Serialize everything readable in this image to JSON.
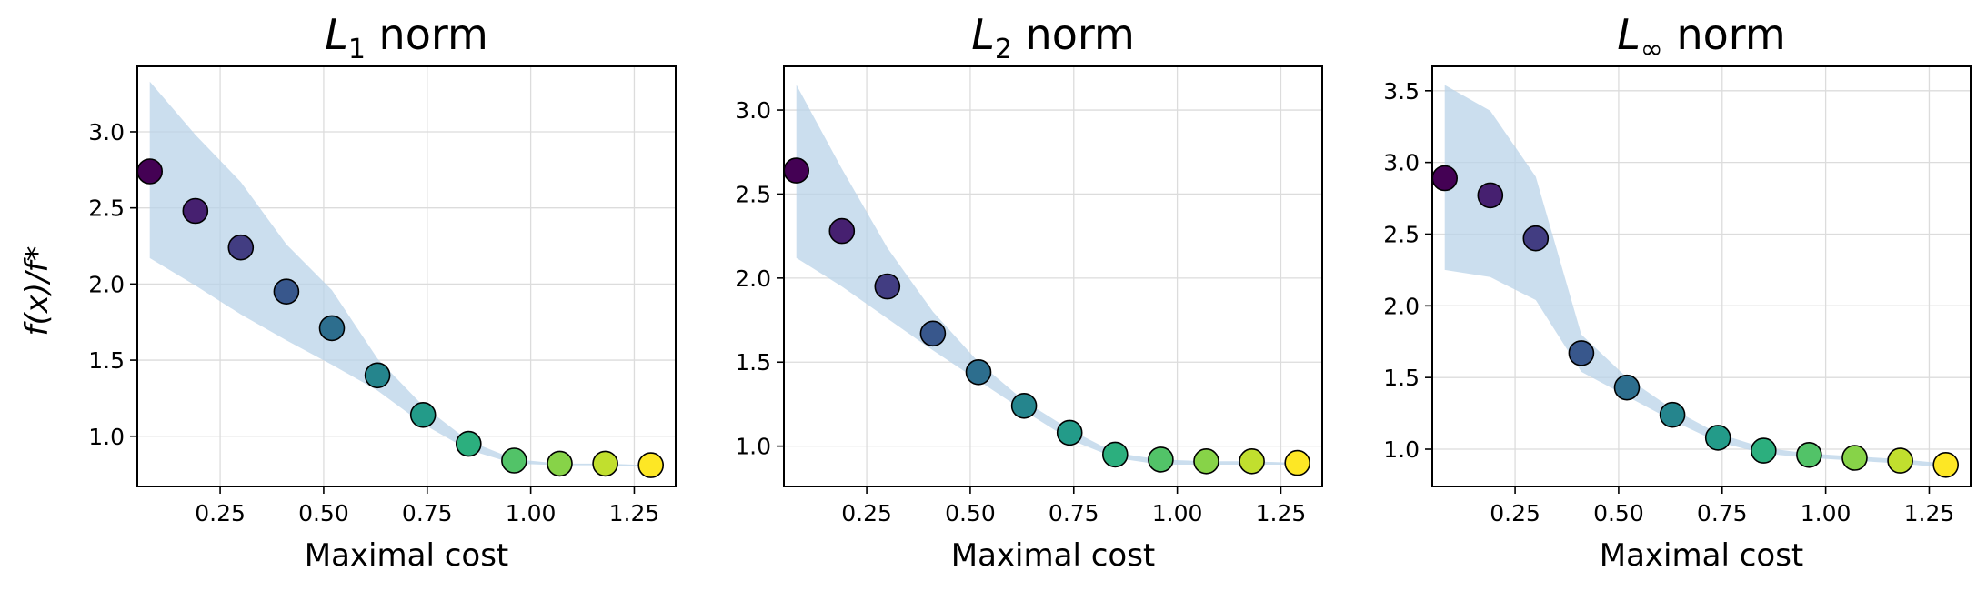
{
  "figure": {
    "ylabel": "f(x)/f*"
  },
  "chart_data": [
    {
      "type": "scatter",
      "title": "L1 norm",
      "title_math": {
        "base": "L",
        "sub": "1",
        "rest": " norm"
      },
      "xlabel": "Maximal cost",
      "ylabel": "f(x)/f*",
      "xlim": [
        0.05,
        1.35
      ],
      "ylim": [
        0.67,
        3.43
      ],
      "xticks": [
        0.25,
        0.5,
        0.75,
        1.0,
        1.25
      ],
      "xtick_labels": [
        "0.25",
        "0.50",
        "0.75",
        "1.00",
        "1.25"
      ],
      "yticks": [
        1.0,
        1.5,
        2.0,
        2.5,
        3.0
      ],
      "ytick_labels": [
        "1.0",
        "1.5",
        "2.0",
        "2.5",
        "3.0"
      ],
      "grid": true,
      "colormap": "viridis",
      "x": [
        0.08,
        0.19,
        0.3,
        0.41,
        0.52,
        0.63,
        0.74,
        0.85,
        0.96,
        1.07,
        1.18,
        1.29
      ],
      "y": [
        2.74,
        2.48,
        2.24,
        1.95,
        1.71,
        1.4,
        1.14,
        0.95,
        0.84,
        0.82,
        0.82,
        0.81
      ],
      "band_upper": [
        3.33,
        2.98,
        2.67,
        2.26,
        1.96,
        1.51,
        1.2,
        0.97,
        0.85,
        0.82,
        0.82,
        0.81
      ],
      "band_lower": [
        2.17,
        1.99,
        1.8,
        1.63,
        1.47,
        1.3,
        1.08,
        0.91,
        0.82,
        0.81,
        0.81,
        0.8
      ],
      "band_color": "#b9d3e8",
      "marker_edge_color": "#000000"
    },
    {
      "type": "scatter",
      "title": "L2 norm",
      "title_math": {
        "base": "L",
        "sub": "2",
        "rest": " norm"
      },
      "xlabel": "Maximal cost",
      "xlim": [
        0.05,
        1.35
      ],
      "ylim": [
        0.76,
        3.26
      ],
      "xticks": [
        0.25,
        0.5,
        0.75,
        1.0,
        1.25
      ],
      "xtick_labels": [
        "0.25",
        "0.50",
        "0.75",
        "1.00",
        "1.25"
      ],
      "yticks": [
        1.0,
        1.5,
        2.0,
        2.5,
        3.0
      ],
      "ytick_labels": [
        "1.0",
        "1.5",
        "2.0",
        "2.5",
        "3.0"
      ],
      "grid": true,
      "colormap": "viridis",
      "x": [
        0.08,
        0.19,
        0.3,
        0.41,
        0.52,
        0.63,
        0.74,
        0.85,
        0.96,
        1.07,
        1.18,
        1.29
      ],
      "y": [
        2.64,
        2.28,
        1.95,
        1.67,
        1.44,
        1.24,
        1.08,
        0.95,
        0.92,
        0.91,
        0.91,
        0.9
      ],
      "band_upper": [
        3.15,
        2.65,
        2.18,
        1.8,
        1.5,
        1.27,
        1.1,
        0.96,
        0.92,
        0.91,
        0.91,
        0.9
      ],
      "band_lower": [
        2.12,
        1.95,
        1.76,
        1.57,
        1.39,
        1.21,
        1.04,
        0.93,
        0.89,
        0.89,
        0.89,
        0.89
      ],
      "band_color": "#b9d3e8",
      "marker_edge_color": "#000000"
    },
    {
      "type": "scatter",
      "title": "L∞ norm",
      "title_math": {
        "base": "L",
        "sub": "∞",
        "rest": " norm"
      },
      "xlabel": "Maximal cost",
      "xlim": [
        0.05,
        1.35
      ],
      "ylim": [
        0.74,
        3.67
      ],
      "xticks": [
        0.25,
        0.5,
        0.75,
        1.0,
        1.25
      ],
      "xtick_labels": [
        "0.25",
        "0.50",
        "0.75",
        "1.00",
        "1.25"
      ],
      "yticks": [
        1.0,
        1.5,
        2.0,
        2.5,
        3.0,
        3.5
      ],
      "ytick_labels": [
        "1.0",
        "1.5",
        "2.0",
        "2.5",
        "3.0",
        "3.5"
      ],
      "grid": true,
      "colormap": "viridis",
      "x": [
        0.08,
        0.19,
        0.3,
        0.41,
        0.52,
        0.63,
        0.74,
        0.85,
        0.96,
        1.07,
        1.18,
        1.29
      ],
      "y": [
        2.89,
        2.77,
        2.47,
        1.67,
        1.43,
        1.24,
        1.08,
        0.99,
        0.96,
        0.94,
        0.92,
        0.89
      ],
      "band_upper": [
        3.54,
        3.36,
        2.9,
        1.8,
        1.5,
        1.28,
        1.11,
        1.01,
        0.97,
        0.95,
        0.93,
        0.9
      ],
      "band_lower": [
        2.25,
        2.2,
        2.04,
        1.54,
        1.37,
        1.2,
        1.05,
        0.97,
        0.94,
        0.92,
        0.9,
        0.87
      ],
      "band_color": "#b9d3e8",
      "marker_edge_color": "#000000"
    }
  ]
}
